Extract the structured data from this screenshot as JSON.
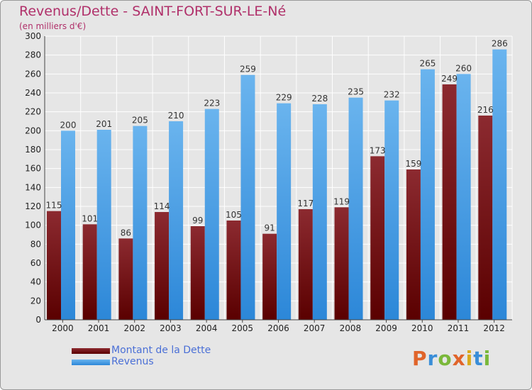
{
  "title": "Revenus/Dette - SAINT-FORT-SUR-LE-Né",
  "subtitle": "(en milliers d'€)",
  "brand": "Proxiti",
  "colors": {
    "dette_top": "#8c2a30",
    "dette_bottom": "#5a0000",
    "revenus_top": "#6ab4ee",
    "revenus_bottom": "#2c87d8",
    "title": "#b0306a"
  },
  "chart_data": {
    "type": "bar",
    "title": "Revenus/Dette - SAINT-FORT-SUR-LE-Né",
    "subtitle": "(en milliers d'€)",
    "categories": [
      "2000",
      "2001",
      "2002",
      "2003",
      "2004",
      "2005",
      "2006",
      "2007",
      "2008",
      "2009",
      "2010",
      "2011",
      "2012"
    ],
    "series": [
      {
        "name": "Montant de la Dette",
        "values": [
          115,
          101,
          86,
          114,
          99,
          105,
          91,
          117,
          119,
          173,
          159,
          249,
          216
        ]
      },
      {
        "name": "Revenus",
        "values": [
          200,
          201,
          205,
          210,
          223,
          259,
          229,
          228,
          235,
          232,
          265,
          260,
          286
        ]
      }
    ],
    "ylim": [
      0,
      300
    ],
    "yticks": [
      0,
      20,
      40,
      60,
      80,
      100,
      120,
      140,
      160,
      180,
      200,
      220,
      240,
      260,
      280,
      300
    ],
    "grid": true,
    "legend_position": "bottom-left"
  }
}
